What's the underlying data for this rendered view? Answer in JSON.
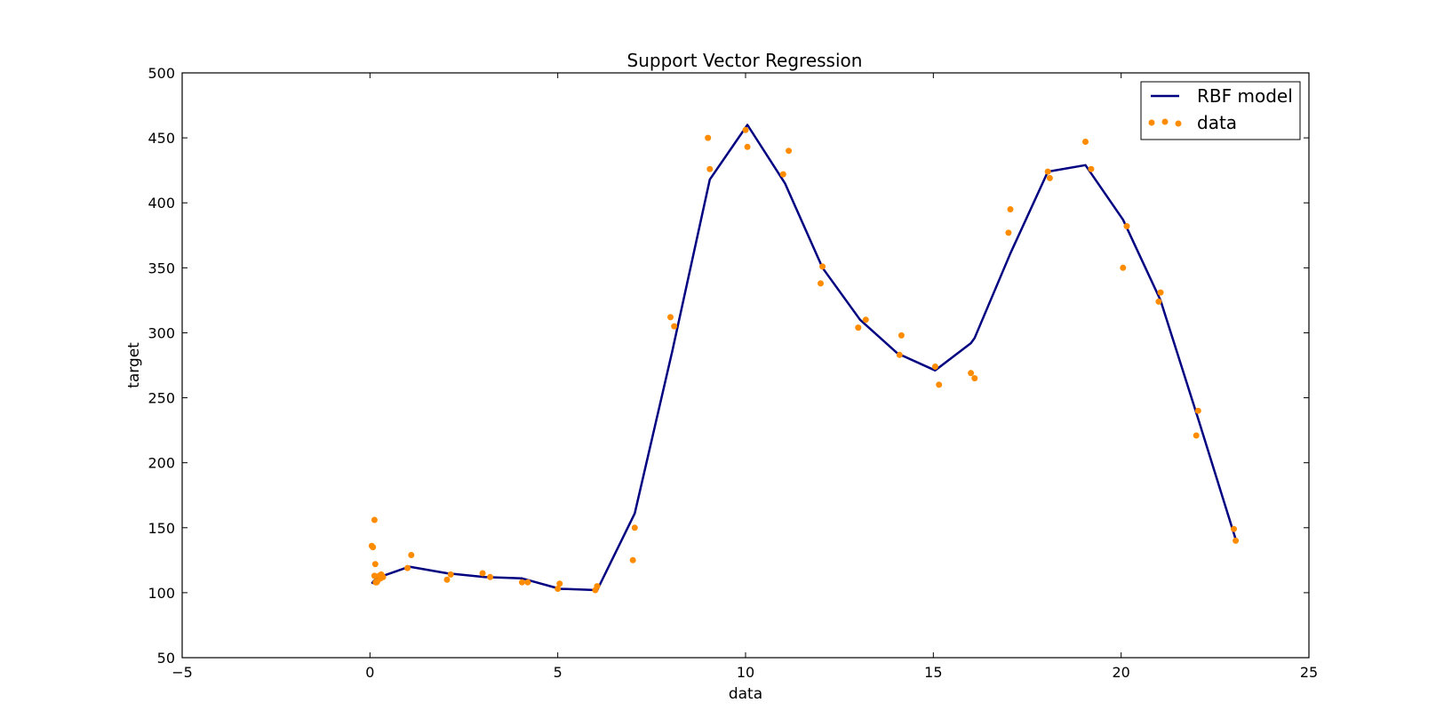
{
  "chart_data": {
    "type": "line",
    "title": "Support Vector Regression",
    "xlabel": "data",
    "ylabel": "target",
    "xlim": [
      -5,
      25
    ],
    "ylim": [
      50,
      500
    ],
    "xticks": [
      -5,
      0,
      5,
      10,
      15,
      20,
      25
    ],
    "yticks": [
      50,
      100,
      150,
      200,
      250,
      300,
      350,
      400,
      450,
      500
    ],
    "xtick_labels": [
      "−5",
      "0",
      "5",
      "10",
      "15",
      "20",
      "25"
    ],
    "ytick_labels": [
      "50",
      "100",
      "150",
      "200",
      "250",
      "300",
      "350",
      "400",
      "450",
      "500"
    ],
    "grid": false,
    "legend_position": "top-right",
    "series": [
      {
        "name": "RBF model",
        "kind": "line",
        "color": "#000080",
        "x": [
          0.05,
          0.1,
          0.15,
          0.2,
          0.25,
          0.3,
          0.35,
          1.05,
          2.05,
          3.05,
          4.05,
          5.05,
          6.05,
          7.05,
          8.05,
          9.05,
          10.05,
          11.05,
          12.05,
          13.05,
          14.05,
          15.05,
          16.0,
          16.1,
          17.05,
          18.05,
          19.05,
          20.05,
          21.05,
          22.05,
          23.05
        ],
        "y": [
          107,
          109,
          110,
          111,
          112,
          112,
          113,
          120,
          115,
          112,
          111,
          103,
          102,
          161,
          286,
          418,
          460,
          415,
          350,
          310,
          284,
          271,
          292,
          296,
          361,
          424,
          429,
          387,
          325,
          234,
          141
        ]
      },
      {
        "name": "data",
        "kind": "scatter",
        "color": "#ff8c00",
        "x": [
          0.05,
          0.08,
          0.12,
          0.14,
          0.12,
          0.15,
          0.18,
          0.2,
          0.25,
          0.28,
          0.3,
          0.32,
          0.35,
          1.0,
          1.1,
          2.05,
          2.15,
          3.0,
          3.2,
          4.05,
          4.2,
          5.0,
          5.05,
          6.0,
          6.05,
          7.0,
          7.05,
          8.0,
          8.1,
          9.0,
          9.05,
          10.0,
          10.05,
          11.0,
          11.15,
          12.0,
          12.05,
          13.0,
          13.2,
          14.1,
          14.15,
          15.05,
          15.15,
          16.0,
          16.1,
          17.0,
          17.05,
          18.05,
          18.1,
          19.05,
          19.2,
          20.05,
          20.15,
          21.0,
          21.05,
          22.0,
          22.05,
          23.0,
          23.05
        ],
        "y": [
          136,
          135,
          156,
          122,
          113,
          108,
          108,
          109,
          113,
          111,
          114,
          113,
          112,
          119,
          129,
          110,
          114,
          115,
          112,
          108,
          108,
          103,
          107,
          102,
          105,
          125,
          150,
          312,
          305,
          450,
          426,
          456,
          443,
          422,
          440,
          338,
          351,
          304,
          310,
          283,
          298,
          274,
          260,
          269,
          265,
          377,
          395,
          424,
          419,
          447,
          426,
          350,
          382,
          324,
          331,
          221,
          240,
          149,
          140
        ]
      }
    ]
  }
}
